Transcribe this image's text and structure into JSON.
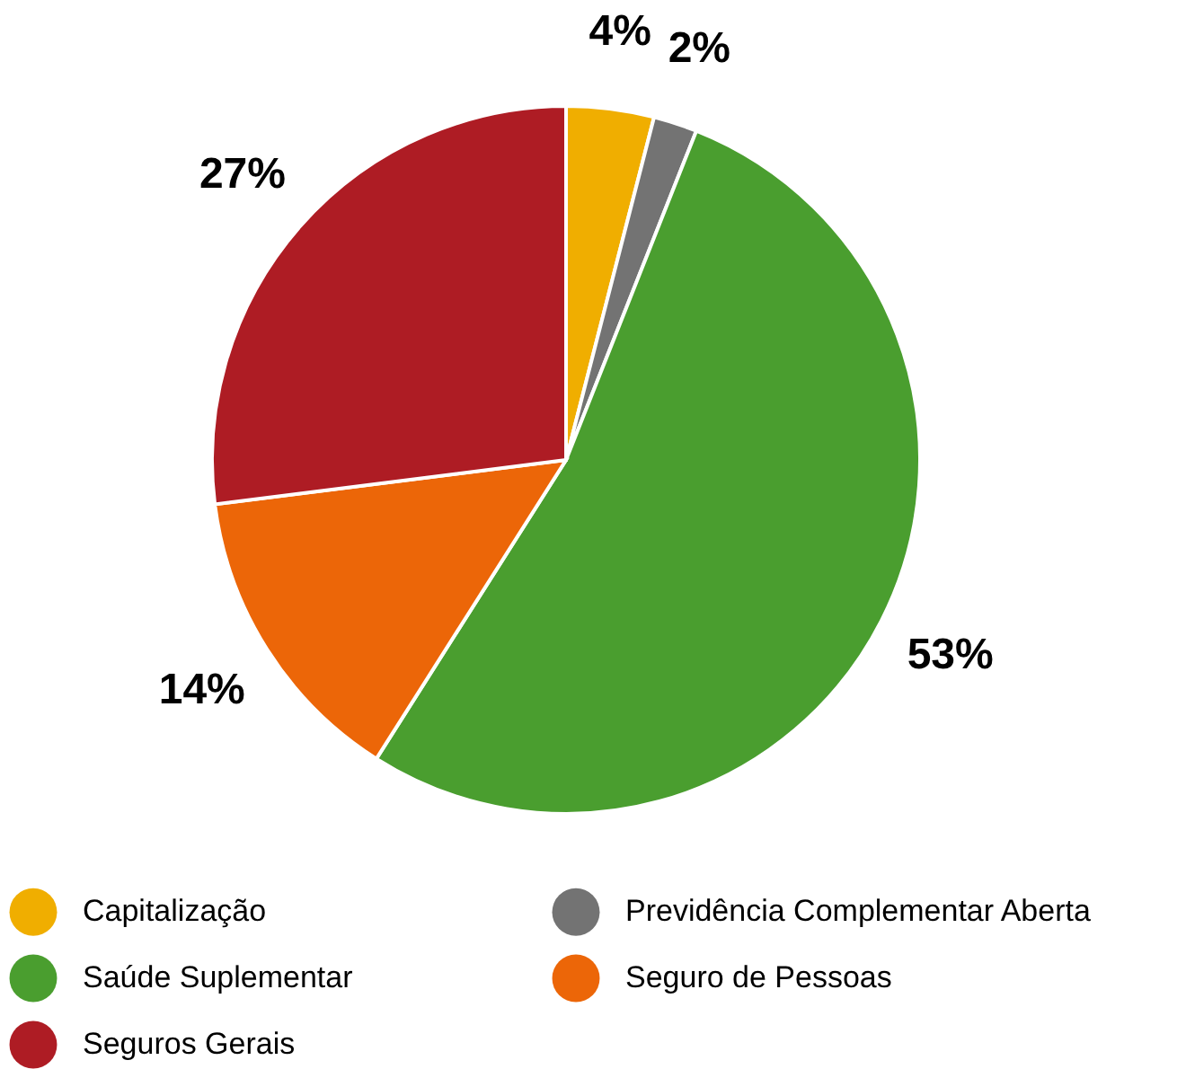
{
  "chart_data": {
    "type": "pie",
    "categories": [
      "Capitalização",
      "Previdência Complementar Aberta",
      "Saúde Suplementar",
      "Seguro de Pessoas",
      "Seguros Gerais"
    ],
    "values": [
      4,
      2,
      53,
      14,
      27
    ],
    "colors": [
      "#f0ae00",
      "#737373",
      "#4a9e2f",
      "#ec6608",
      "#ae1c24"
    ],
    "value_labels": [
      "4%",
      "2%",
      "53%",
      "14%",
      "27%"
    ],
    "legend": "bottom"
  }
}
